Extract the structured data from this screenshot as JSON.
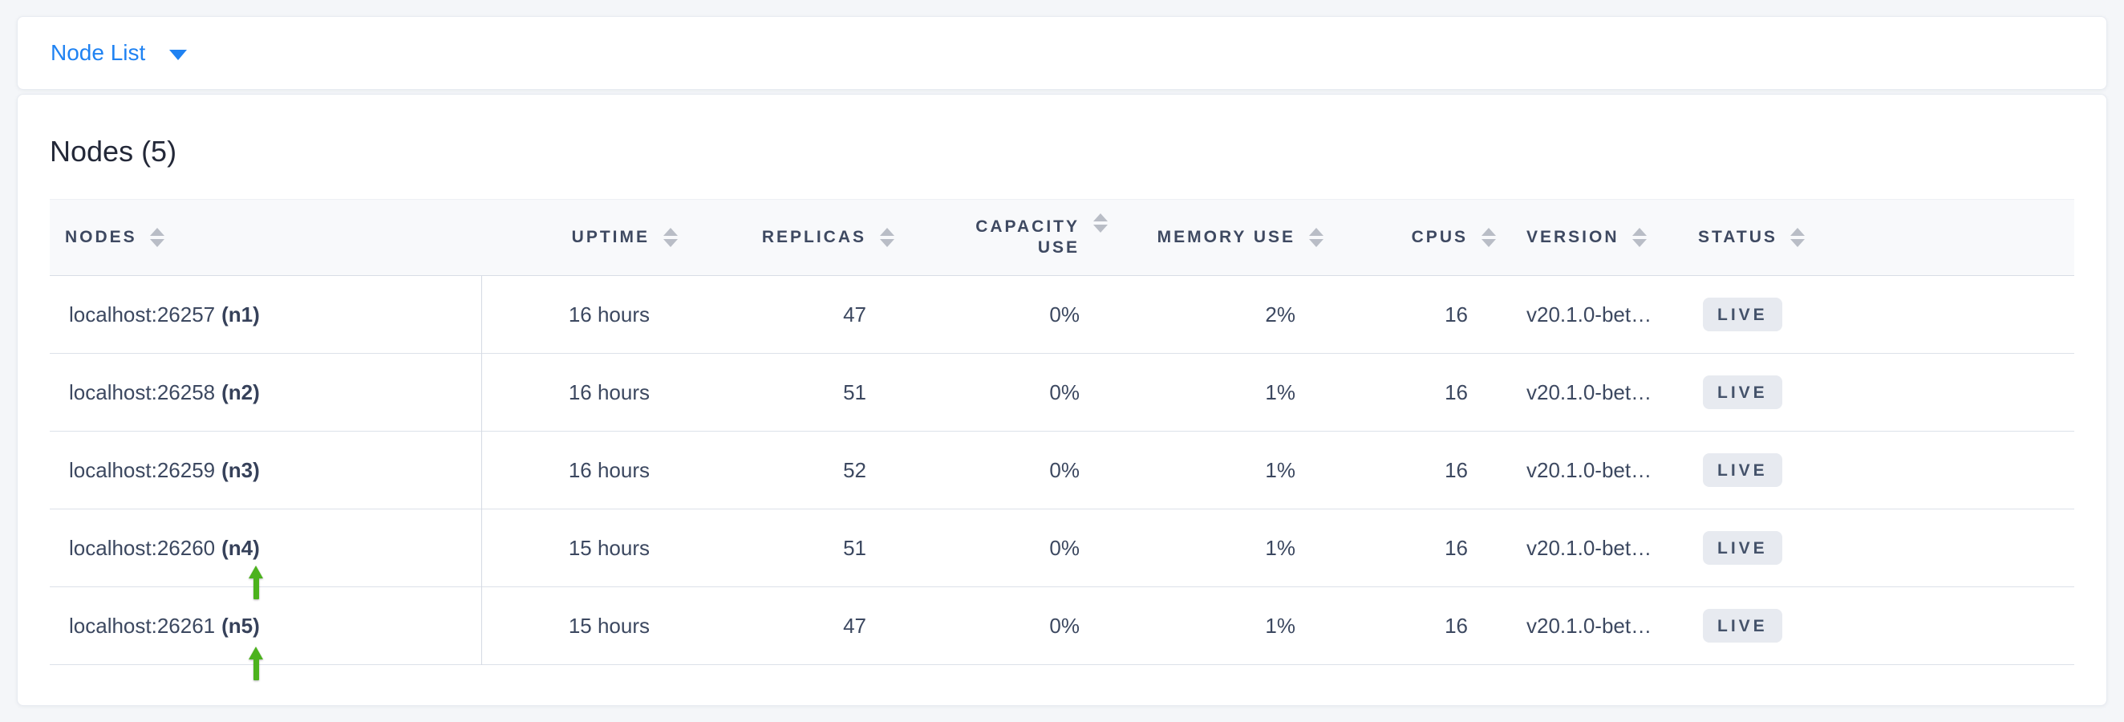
{
  "nav": {
    "dropdown_label": "Node List"
  },
  "main": {
    "title": "Nodes (5)"
  },
  "table": {
    "columns": [
      {
        "key": "nodes",
        "label": "Nodes",
        "align": "left"
      },
      {
        "key": "uptime",
        "label": "Uptime",
        "align": "right"
      },
      {
        "key": "replicas",
        "label": "Replicas",
        "align": "right"
      },
      {
        "key": "capacity_use",
        "label": "Capacity Use",
        "align": "right"
      },
      {
        "key": "memory_use",
        "label": "Memory Use",
        "align": "right"
      },
      {
        "key": "cpus",
        "label": "CPUs",
        "align": "right"
      },
      {
        "key": "version",
        "label": "Version",
        "align": "left"
      },
      {
        "key": "status",
        "label": "Status",
        "align": "left"
      }
    ],
    "rows": [
      {
        "address": "localhost:26257",
        "name": "(n1)",
        "uptime": "16 hours",
        "replicas": "47",
        "capacity_use": "0%",
        "memory_use": "2%",
        "cpus": "16",
        "version": "v20.1.0-bet…",
        "status": "LIVE"
      },
      {
        "address": "localhost:26258",
        "name": "(n2)",
        "uptime": "16 hours",
        "replicas": "51",
        "capacity_use": "0%",
        "memory_use": "1%",
        "cpus": "16",
        "version": "v20.1.0-bet…",
        "status": "LIVE"
      },
      {
        "address": "localhost:26259",
        "name": "(n3)",
        "uptime": "16 hours",
        "replicas": "52",
        "capacity_use": "0%",
        "memory_use": "1%",
        "cpus": "16",
        "version": "v20.1.0-bet…",
        "status": "LIVE"
      },
      {
        "address": "localhost:26260",
        "name": "(n4)",
        "uptime": "15 hours",
        "replicas": "51",
        "capacity_use": "0%",
        "memory_use": "1%",
        "cpus": "16",
        "version": "v20.1.0-bet…",
        "status": "LIVE"
      },
      {
        "address": "localhost:26261",
        "name": "(n5)",
        "uptime": "15 hours",
        "replicas": "47",
        "capacity_use": "0%",
        "memory_use": "1%",
        "cpus": "16",
        "version": "v20.1.0-bet…",
        "status": "LIVE"
      }
    ]
  },
  "annotations": {
    "green_arrow_targets": [
      "(n4)",
      "(n5)"
    ]
  },
  "icons": {
    "caret": "chevron-down",
    "sort": "sort-arrows",
    "annotation": "green-up-arrow"
  },
  "colors": {
    "accent_blue": "#1f82f2",
    "arrow_green": "#4cb21d",
    "badge_bg": "#e7eaf0",
    "header_text": "#3e4961",
    "body_text": "#3c4860",
    "page_bg": "#f4f6f9"
  }
}
